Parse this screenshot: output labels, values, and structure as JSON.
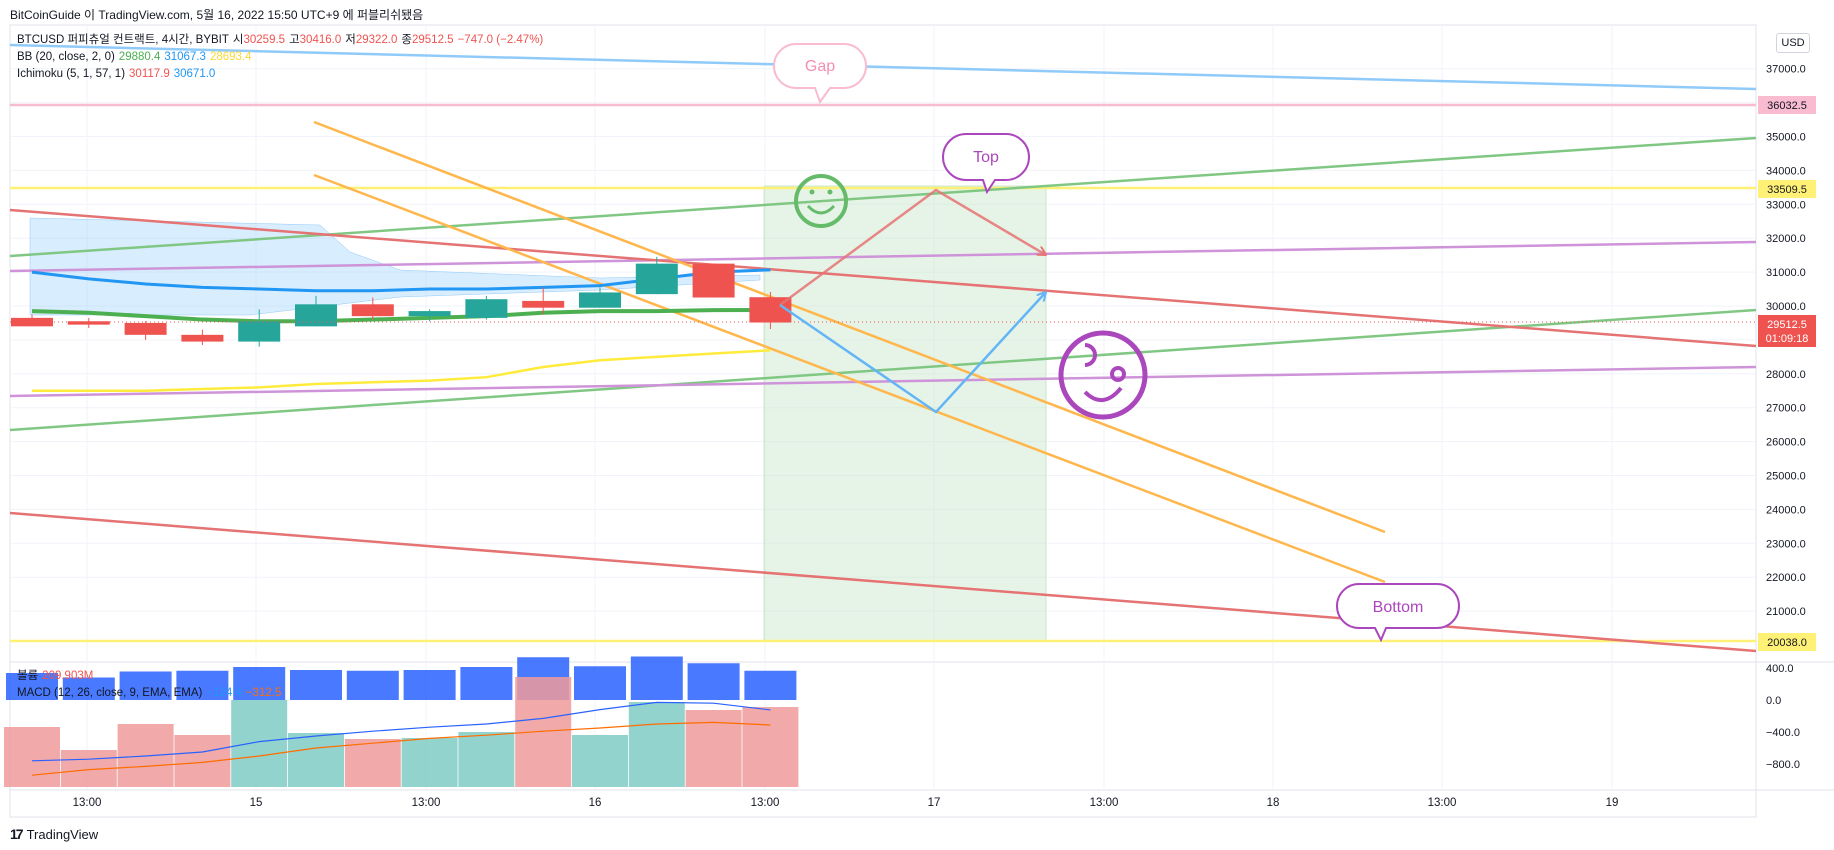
{
  "caption": "BitCoinGuide 이 TradingView.com, 5월 16, 2022 15:50 UTC+9 에 퍼블리쉬됐음",
  "legend": {
    "symbol": "BTCUSD 퍼피츄얼 컨트랙트, 4시간, BYBIT",
    "ohlc": [
      {
        "k": "시",
        "v": "30259.5"
      },
      {
        "k": "고",
        "v": "30416.0"
      },
      {
        "k": "저",
        "v": "29322.0"
      },
      {
        "k": "종",
        "v": "29512.5"
      }
    ],
    "change": "−747.0 (−2.47%)",
    "bb": {
      "label": "BB (20, close, 2, 0)",
      "basis": "29880.4",
      "upper": "31067.3",
      "lower": "28693.4"
    },
    "ichimoku": {
      "label": "Ichimoku (5, 1, 57, 1)",
      "a": "30117.9",
      "b": "30671.0"
    },
    "volume": {
      "label": "볼륨",
      "value": "209.903M"
    },
    "macd": {
      "label": "MACD (12, 26, close, 9, EMA, EMA)",
      "v1": "−124.4",
      "v2": "−312.5"
    }
  },
  "currency": "USD",
  "annotations": {
    "gap": "Gap",
    "top": "Top",
    "bottom": "Bottom"
  },
  "price_labels": {
    "level_36032": "36032.5",
    "level_33509": "33509.5",
    "last_price": "29512.5",
    "countdown": "01:09:18",
    "level_20038": "20038.0"
  },
  "footer": {
    "brand": "TradingView"
  },
  "colors": {
    "up": "#26a69a",
    "down": "#ef5350",
    "blue": "#2196f3",
    "green": "#4caf50",
    "yellow": "#ffeb3b",
    "orange": "#ffb74d",
    "pink": "#f48fb1",
    "purple": "#ab47bc"
  },
  "chart_data": {
    "type": "candlestick",
    "price_axis": {
      "ticks": [
        37000,
        36000,
        35000,
        34000,
        33000,
        32000,
        31000,
        30000,
        29000,
        28000,
        27000,
        26000,
        25000,
        24000,
        23000,
        22000,
        21000
      ],
      "range": [
        20000,
        38000
      ]
    },
    "time_axis": {
      "ticks": [
        "13:00",
        "15",
        "13:00",
        "16",
        "13:00",
        "17",
        "13:00",
        "18",
        "13:00",
        "19"
      ]
    },
    "macd_axis": {
      "ticks": [
        "400.0",
        "0.0",
        "−400.0",
        "−800.0"
      ],
      "range": [
        -1100,
        450
      ]
    },
    "candles": [
      {
        "o": 29650,
        "h": 29750,
        "l": 29400,
        "c": 29400
      },
      {
        "o": 29550,
        "h": 29650,
        "l": 29350,
        "c": 29450
      },
      {
        "o": 29500,
        "h": 29550,
        "l": 29000,
        "c": 29150
      },
      {
        "o": 29150,
        "h": 29300,
        "l": 28850,
        "c": 28950
      },
      {
        "o": 28950,
        "h": 29900,
        "l": 28800,
        "c": 29550
      },
      {
        "o": 29400,
        "h": 30300,
        "l": 29400,
        "c": 30050
      },
      {
        "o": 30050,
        "h": 30250,
        "l": 29600,
        "c": 29700
      },
      {
        "o": 29700,
        "h": 29900,
        "l": 29550,
        "c": 29850
      },
      {
        "o": 29650,
        "h": 30300,
        "l": 29600,
        "c": 30200
      },
      {
        "o": 30150,
        "h": 30550,
        "l": 29750,
        "c": 29950
      },
      {
        "o": 29950,
        "h": 30550,
        "l": 29950,
        "c": 30400
      },
      {
        "o": 30350,
        "h": 31450,
        "l": 30350,
        "c": 31250
      },
      {
        "o": 31250,
        "h": 31250,
        "l": 30250,
        "c": 30250
      },
      {
        "o": 30259.5,
        "h": 30416,
        "l": 29322,
        "c": 29512.5
      }
    ],
    "bb_basis": [
      29850,
      29800,
      29700,
      29600,
      29550,
      29550,
      29600,
      29650,
      29700,
      29800,
      29850,
      29850,
      29880,
      29880.4
    ],
    "bb_upper": [
      31000,
      30800,
      30650,
      30550,
      30500,
      30450,
      30450,
      30500,
      30500,
      30550,
      30600,
      30800,
      31000,
      31067.3
    ],
    "bb_lower": [
      27500,
      27500,
      27500,
      27550,
      27600,
      27700,
      27750,
      27800,
      27900,
      28200,
      28400,
      28500,
      28600,
      28693.4
    ],
    "volume": [
      360,
      300,
      380,
      390,
      440,
      400,
      390,
      400,
      440,
      570,
      450,
      580,
      490,
      390
    ],
    "macd_hist": [
      -100,
      -200,
      -80,
      -120,
      0,
      -110,
      -150,
      -130,
      -110,
      0,
      -100,
      0,
      -30,
      -20
    ],
    "macd_line": [
      -760,
      -740,
      -700,
      -650,
      -520,
      -450,
      -390,
      -340,
      -300,
      -230,
      -120,
      -30,
      -40,
      -124.4
    ],
    "macd_signal": [
      -940,
      -870,
      -830,
      -780,
      -700,
      -600,
      -540,
      -480,
      -440,
      -390,
      -350,
      -300,
      -280,
      -312.5
    ],
    "levels": [
      36032.5,
      33509.5,
      20038.0
    ],
    "last_price": 29512.5
  }
}
